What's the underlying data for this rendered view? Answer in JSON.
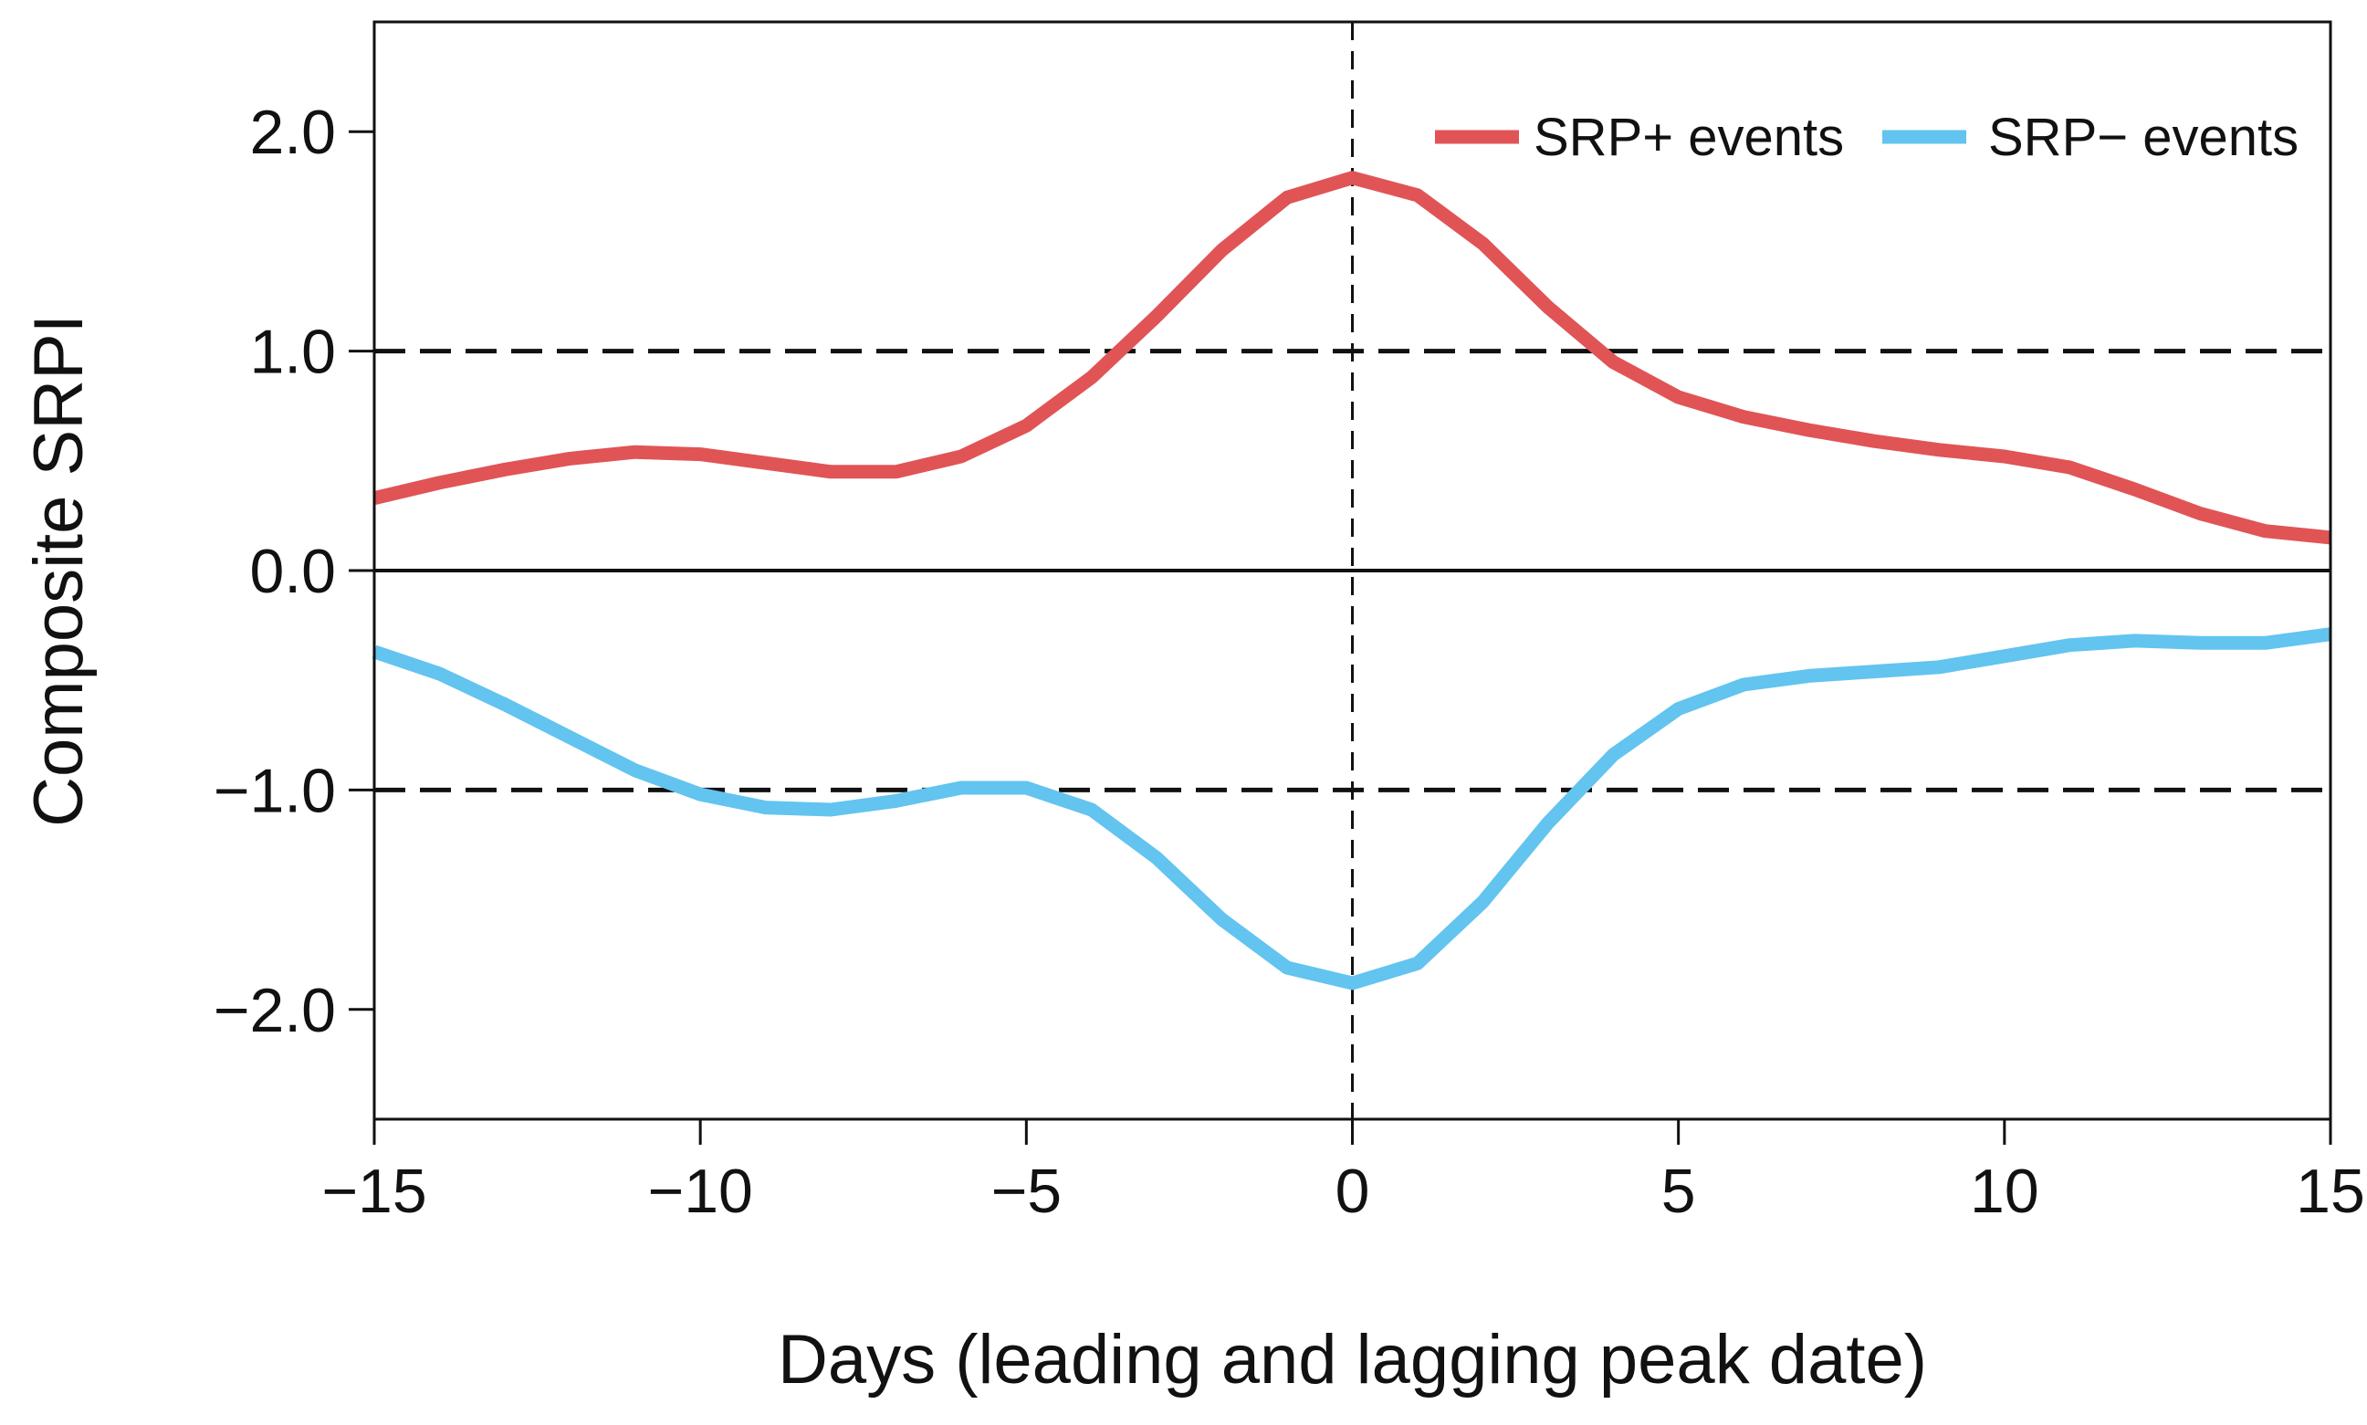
{
  "chart_data": {
    "type": "line",
    "title": "",
    "xlabel": "Days (leading and lagging peak date)",
    "ylabel": "Composite SRPI",
    "xlim": [
      -15,
      15
    ],
    "ylim": [
      -2.5,
      2.5
    ],
    "xticks": [
      -15,
      -10,
      -5,
      0,
      5,
      10,
      15
    ],
    "xtick_labels": [
      "−15",
      "−10",
      "−5",
      "0",
      "5",
      "10",
      "15"
    ],
    "yticks": [
      -2.0,
      -1.0,
      0.0,
      1.0,
      2.0
    ],
    "ytick_labels": [
      "−2.0",
      "−1.0",
      "0.0",
      "1.0",
      "2.0"
    ],
    "grid": false,
    "legend_position": "top-right",
    "reference_lines": {
      "horizontal_dashed": [
        1.0,
        -1.0
      ],
      "horizontal_solid": [
        0.0
      ],
      "vertical_dashed": [
        0
      ]
    },
    "x": [
      -15,
      -14,
      -13,
      -12,
      -11,
      -10,
      -9,
      -8,
      -7,
      -6,
      -5,
      -4,
      -3,
      -2,
      -1,
      0,
      1,
      2,
      3,
      4,
      5,
      6,
      7,
      8,
      9,
      10,
      11,
      12,
      13,
      14,
      15
    ],
    "series": [
      {
        "name": "SRP+ events",
        "color": "#e05456",
        "values": [
          0.33,
          0.4,
          0.46,
          0.51,
          0.54,
          0.53,
          0.49,
          0.45,
          0.45,
          0.52,
          0.66,
          0.88,
          1.16,
          1.46,
          1.7,
          1.79,
          1.71,
          1.49,
          1.2,
          0.95,
          0.79,
          0.7,
          0.64,
          0.59,
          0.55,
          0.52,
          0.47,
          0.37,
          0.26,
          0.18,
          0.15
        ]
      },
      {
        "name": "SRP− events",
        "color": "#62c4ef",
        "values": [
          -0.37,
          -0.47,
          -0.61,
          -0.76,
          -0.91,
          -1.02,
          -1.08,
          -1.09,
          -1.05,
          -0.99,
          -0.99,
          -1.09,
          -1.31,
          -1.59,
          -1.81,
          -1.88,
          -1.79,
          -1.51,
          -1.15,
          -0.84,
          -0.63,
          -0.52,
          -0.48,
          -0.46,
          -0.44,
          -0.39,
          -0.34,
          -0.32,
          -0.33,
          -0.33,
          -0.29
        ]
      }
    ]
  }
}
